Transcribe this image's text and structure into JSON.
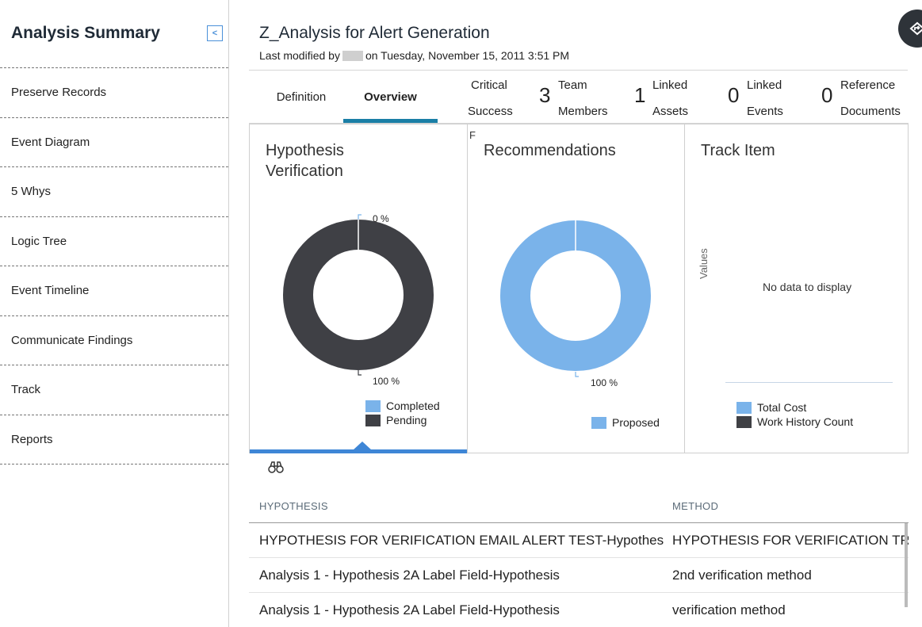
{
  "sidebar": {
    "title": "Analysis Summary",
    "collapse_icon": "chevron-left-icon",
    "items": [
      {
        "label": "Preserve Records"
      },
      {
        "label": "Event Diagram"
      },
      {
        "label": "5 Whys"
      },
      {
        "label": "Logic Tree"
      },
      {
        "label": "Event Timeline"
      },
      {
        "label": "Communicate Findings"
      },
      {
        "label": "Track"
      },
      {
        "label": "Reports"
      }
    ]
  },
  "header": {
    "title": "Z_Analysis for Alert Generation",
    "modified_prefix": "Last modified by",
    "modified_suffix": "on Tuesday, November 15, 2011 3:51 PM"
  },
  "tabs": {
    "definition": "Definition",
    "overview": "Overview",
    "critical": {
      "line1": "Critical",
      "line2": "Success"
    },
    "team": {
      "count": "3",
      "line1": "Team",
      "line2": "Members"
    },
    "assets": {
      "count": "1",
      "line1": "Linked",
      "line2": "Assets"
    },
    "events": {
      "count": "0",
      "line1": "Linked",
      "line2": "Events"
    },
    "docs": {
      "count": "0",
      "line1": "Reference",
      "line2": "Documents"
    }
  },
  "cards": {
    "hypothesis": {
      "title_line1": "Hypothesis",
      "title_line2": "Verification",
      "label_top": "0 %",
      "label_bottom": "100 %",
      "legend": [
        {
          "label": "Completed",
          "color": "#7ab3ea"
        },
        {
          "label": "Pending",
          "color": "#3f4045"
        }
      ]
    },
    "recommendations": {
      "title": "Recommendations",
      "label_bottom": "100 %",
      "legend": [
        {
          "label": "Proposed",
          "color": "#7ab3ea"
        }
      ]
    },
    "track": {
      "title": "Track Item",
      "axis_label": "Values",
      "empty": "No data to display",
      "legend": [
        {
          "label": "Total Cost",
          "color": "#7ab3ea"
        },
        {
          "label": "Work History Count",
          "color": "#3f4045"
        }
      ]
    },
    "overflow_char": "F"
  },
  "chart_data": [
    {
      "type": "pie",
      "title": "Hypothesis Verification",
      "categories": [
        "Completed",
        "Pending"
      ],
      "values": [
        0,
        100
      ],
      "labels": [
        "0 %",
        "100 %"
      ]
    },
    {
      "type": "pie",
      "title": "Recommendations",
      "categories": [
        "Proposed"
      ],
      "values": [
        100
      ],
      "labels": [
        "100 %"
      ]
    }
  ],
  "table": {
    "search_icon": "binoculars-icon",
    "columns": [
      "HYPOTHESIS",
      "METHOD"
    ],
    "rows": [
      [
        "HYPOTHESIS FOR VERIFICATION EMAIL ALERT TEST-Hypothesis",
        "HYPOTHESIS FOR VERIFICATION TRAC"
      ],
      [
        "Analysis 1 - Hypothesis 2A Label Field-Hypothesis",
        "2nd verification method"
      ],
      [
        "Analysis 1 - Hypothesis 2A Label Field-Hypothesis",
        "verification method"
      ]
    ]
  }
}
